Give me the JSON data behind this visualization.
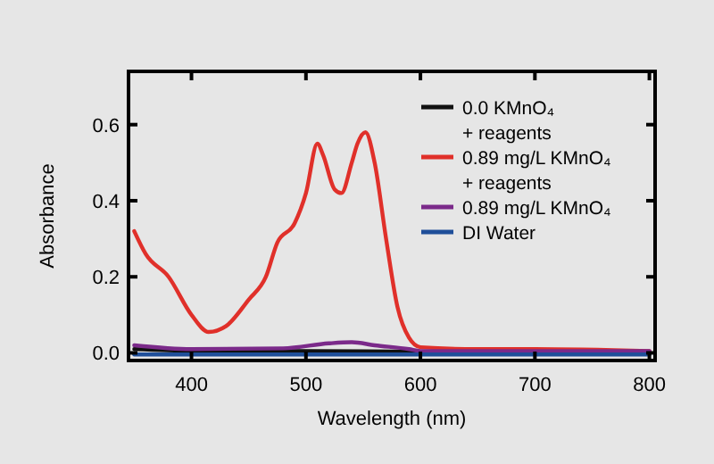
{
  "chart_data": {
    "type": "line",
    "xlabel": "Wavelength (nm)",
    "ylabel": "Absorbance",
    "xlim": [
      345,
      805
    ],
    "ylim": [
      -0.02,
      0.74
    ],
    "xticks": [
      400,
      500,
      600,
      700,
      800
    ],
    "yticks": [
      {
        "value": 0,
        "label": "0.0"
      },
      {
        "value": 0.2,
        "label": "0.2"
      },
      {
        "value": 0.4,
        "label": "0.4"
      },
      {
        "value": 0.6,
        "label": "0.6"
      }
    ],
    "legend": "top right",
    "grid": false,
    "marker": "none",
    "line_style": "solid",
    "series": [
      {
        "name": "0.0 KMnO₄\n+ reagents",
        "color": "#111111",
        "x": [
          350,
          400,
          500,
          600,
          700,
          800
        ],
        "values": [
          0.01,
          0.006,
          0.005,
          0.003,
          0.002,
          0.001
        ]
      },
      {
        "name": "0.89 mg/L KMnO₄\n+ reagents",
        "color": "#e0302a",
        "x": [
          350,
          360,
          380,
          400,
          415,
          430,
          450,
          465,
          475,
          490,
          500,
          510,
          515,
          525,
          531,
          540,
          545,
          552,
          560,
          570,
          580,
          590,
          600,
          650,
          700,
          800
        ],
        "values": [
          0.32,
          0.26,
          0.2,
          0.1,
          0.055,
          0.07,
          0.14,
          0.2,
          0.29,
          0.34,
          0.42,
          0.55,
          0.52,
          0.43,
          0.42,
          0.5,
          0.55,
          0.58,
          0.5,
          0.3,
          0.12,
          0.04,
          0.015,
          0.01,
          0.01,
          0.005
        ]
      },
      {
        "name": "0.89 mg/L KMnO₄",
        "color": "#7b2a8a",
        "x": [
          350,
          400,
          480,
          520,
          540,
          560,
          590,
          600,
          700,
          800
        ],
        "values": [
          0.02,
          0.01,
          0.012,
          0.025,
          0.028,
          0.02,
          0.01,
          0.005,
          0.005,
          0.005
        ]
      },
      {
        "name": "DI Water",
        "color": "#1f4f9a",
        "x": [
          350,
          500,
          600,
          800
        ],
        "values": [
          -0.004,
          -0.004,
          -0.004,
          -0.004
        ]
      }
    ]
  }
}
